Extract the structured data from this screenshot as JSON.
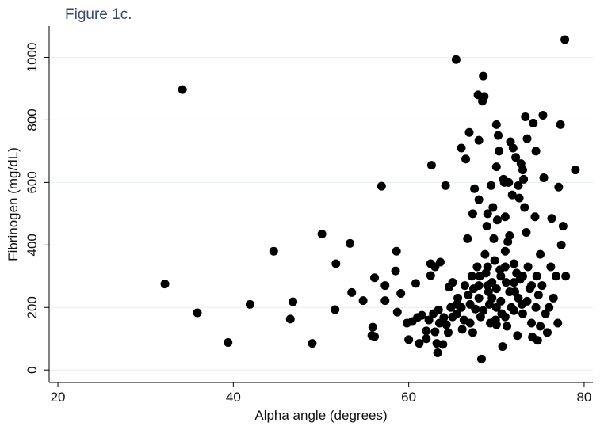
{
  "chart_data": {
    "type": "scatter",
    "title": "Figure 1c.",
    "x_label": "Alpha angle (degrees)",
    "y_label": "Fibrinogen (mg/dL)",
    "color": "#000000",
    "grid": true,
    "xlim": [
      19,
      81
    ],
    "xticks": [
      20,
      40,
      60,
      80
    ],
    "ylim": [
      -40,
      1100
    ],
    "yticks": [
      0,
      200,
      400,
      600,
      800,
      1000
    ],
    "x": [
      32.2,
      34.2,
      35.9,
      39.4,
      41.9,
      44.6,
      46.5,
      46.8,
      49,
      50.1,
      51.7,
      51.6,
      53.3,
      53.5,
      54.8,
      55.8,
      55.9,
      56.1,
      56.1,
      56.9,
      57.3,
      57.3,
      58.5,
      58.6,
      58.7,
      59.1,
      59.8,
      60,
      60.4,
      60.8,
      61,
      61.2,
      62,
      62.3,
      62.5,
      62.5,
      62.6,
      62.8,
      63,
      63,
      63.2,
      63.3,
      63.4,
      63.6,
      63.9,
      64,
      64.2,
      64.3,
      64.5,
      64.6,
      65,
      65,
      65.4,
      65.5,
      65.6,
      66,
      66.1,
      66.3,
      66.4,
      66.5,
      66.7,
      66.9,
      67,
      67.2,
      67.3,
      67.3,
      67.5,
      67.6,
      67.8,
      67.9,
      68,
      68,
      68.1,
      68.2,
      68.3,
      68.4,
      68.5,
      68.6,
      68.7,
      68.8,
      68.9,
      69,
      69.1,
      69.2,
      69.3,
      69.4,
      69.5,
      69.6,
      69.7,
      69.8,
      69.9,
      70,
      70,
      70.1,
      70.2,
      70.3,
      70.4,
      70.5,
      70.6,
      70.7,
      70.8,
      70.9,
      71,
      71,
      71.1,
      71.2,
      71.3,
      71.4,
      71.5,
      71.6,
      71.7,
      71.8,
      71.9,
      72,
      72.1,
      72.2,
      72.3,
      72.4,
      72.5,
      72.6,
      72.7,
      72.8,
      72.9,
      73,
      73.1,
      73.2,
      73.3,
      73.4,
      73.5,
      73.6,
      73.8,
      74,
      74.1,
      74.2,
      74.4,
      74.5,
      74.6,
      74.7,
      74.8,
      75,
      75,
      75.2,
      75.3,
      75.4,
      75.6,
      75.8,
      76,
      76.2,
      76.3,
      76.5,
      76.8,
      77,
      77.1,
      77.3,
      77.4,
      77.6,
      77.8,
      77.9,
      79,
      66,
      66.8,
      67.4,
      68,
      68.5,
      69,
      69.5,
      70,
      70,
      70.5,
      71,
      71.5,
      72,
      72.5,
      73,
      73.5,
      74,
      74.5,
      69,
      70,
      71,
      72,
      73,
      68,
      67,
      65.5,
      64.8,
      63.5,
      62,
      61.5
    ],
    "values": [
      275,
      897,
      183,
      88,
      210,
      380,
      163,
      218,
      85,
      435,
      340,
      193,
      405,
      248,
      222,
      110,
      137,
      107,
      295,
      588,
      222,
      270,
      317,
      380,
      185,
      245,
      150,
      97,
      155,
      277,
      168,
      85,
      100,
      160,
      340,
      302,
      655,
      180,
      122,
      330,
      85,
      55,
      192,
      345,
      82,
      168,
      590,
      145,
      120,
      265,
      280,
      170,
      993,
      210,
      230,
      710,
      130,
      160,
      270,
      675,
      420,
      760,
      210,
      300,
      120,
      500,
      580,
      195,
      330,
      880,
      735,
      545,
      300,
      170,
      35,
      860,
      940,
      875,
      370,
      310,
      460,
      500,
      250,
      210,
      150,
      590,
      280,
      520,
      420,
      350,
      160,
      785,
      650,
      480,
      750,
      700,
      320,
      220,
      180,
      75,
      610,
      600,
      490,
      380,
      280,
      140,
      410,
      600,
      430,
      730,
      200,
      560,
      710,
      340,
      250,
      680,
      310,
      110,
      590,
      550,
      290,
      660,
      210,
      640,
      610,
      520,
      810,
      440,
      740,
      330,
      260,
      150,
      105,
      790,
      490,
      700,
      300,
      95,
      240,
      140,
      370,
      270,
      815,
      615,
      180,
      120,
      200,
      330,
      485,
      230,
      300,
      150,
      585,
      785,
      400,
      460,
      1057,
      300,
      640,
      200,
      240,
      260,
      230,
      190,
      270,
      230,
      200,
      260,
      300,
      170,
      250,
      190,
      230,
      180,
      220,
      270,
      200,
      330,
      145,
      330,
      280,
      300,
      270,
      150,
      180,
      200,
      150,
      125,
      175
    ]
  }
}
